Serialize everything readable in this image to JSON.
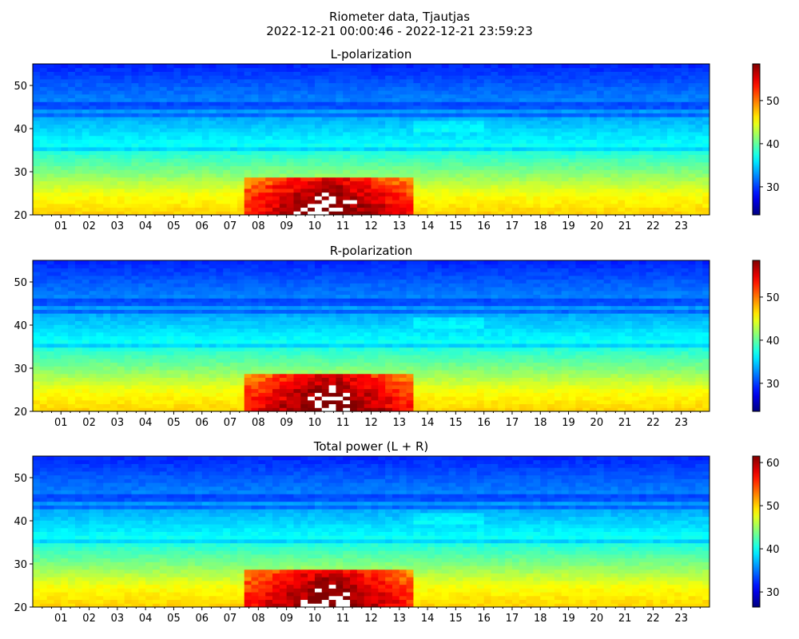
{
  "figure": {
    "title_line1": "Riometer data, Tjautjas",
    "title_line2": "2022-12-21 00:00:46 - 2022-12-21 23:59:23"
  },
  "colormap": "jet",
  "chart_data": [
    {
      "type": "heatmap",
      "title": "L-polarization",
      "xlabel": "",
      "ylabel": "",
      "x_range_hours": [
        0,
        24
      ],
      "x_ticks": [
        "01",
        "02",
        "03",
        "04",
        "05",
        "06",
        "07",
        "08",
        "09",
        "10",
        "11",
        "12",
        "13",
        "14",
        "15",
        "16",
        "17",
        "18",
        "19",
        "20",
        "21",
        "22",
        "23"
      ],
      "ylim": [
        20,
        55
      ],
      "y_ticks": [
        20,
        30,
        40,
        50
      ],
      "colorbar": {
        "range": [
          23.5,
          58.5
        ],
        "ticks": [
          30,
          40,
          50
        ]
      },
      "structure": {
        "background_profile": [
          [
            20,
            47
          ],
          [
            25,
            45
          ],
          [
            30,
            41
          ],
          [
            35,
            37.5
          ],
          [
            42,
            34
          ],
          [
            50,
            31
          ],
          [
            55,
            29
          ]
        ],
        "dark_bands_mhz": [
          35.2,
          43.2,
          45.3
        ],
        "saturated_region": {
          "start_hour": 7.5,
          "end_hour": 13.5,
          "y_from": 20,
          "y_to": 29
        },
        "clipped_note": "white = values above colour range"
      }
    },
    {
      "type": "heatmap",
      "title": "R-polarization",
      "xlabel": "",
      "ylabel": "",
      "x_range_hours": [
        0,
        24
      ],
      "x_ticks": [
        "01",
        "02",
        "03",
        "04",
        "05",
        "06",
        "07",
        "08",
        "09",
        "10",
        "11",
        "12",
        "13",
        "14",
        "15",
        "16",
        "17",
        "18",
        "19",
        "20",
        "21",
        "22",
        "23"
      ],
      "ylim": [
        20,
        55
      ],
      "y_ticks": [
        20,
        30,
        40,
        50
      ],
      "colorbar": {
        "range": [
          23.5,
          58.5
        ],
        "ticks": [
          30,
          40,
          50
        ]
      },
      "structure": {
        "background_profile": [
          [
            20,
            47
          ],
          [
            25,
            45
          ],
          [
            30,
            41
          ],
          [
            35,
            37.5
          ],
          [
            42,
            34
          ],
          [
            50,
            31
          ],
          [
            55,
            29
          ]
        ],
        "dark_bands_mhz": [
          35.2,
          43.2,
          45.3
        ],
        "saturated_region": {
          "start_hour": 7.5,
          "end_hour": 13.5,
          "y_from": 20,
          "y_to": 29
        }
      }
    },
    {
      "type": "heatmap",
      "title": "Total power (L + R)",
      "xlabel": "",
      "ylabel": "",
      "x_range_hours": [
        0,
        24
      ],
      "x_ticks": [
        "01",
        "02",
        "03",
        "04",
        "05",
        "06",
        "07",
        "08",
        "09",
        "10",
        "11",
        "12",
        "13",
        "14",
        "15",
        "16",
        "17",
        "18",
        "19",
        "20",
        "21",
        "22",
        "23"
      ],
      "ylim": [
        20,
        55
      ],
      "y_ticks": [
        20,
        30,
        40,
        50
      ],
      "colorbar": {
        "range": [
          26.5,
          61.5
        ],
        "ticks": [
          30,
          40,
          50,
          60
        ]
      },
      "structure": {
        "background_profile": [
          [
            20,
            50
          ],
          [
            25,
            48
          ],
          [
            30,
            44
          ],
          [
            35,
            40.5
          ],
          [
            42,
            37
          ],
          [
            50,
            34
          ],
          [
            55,
            32
          ]
        ],
        "dark_bands_mhz": [
          35.2,
          43.2,
          45.3
        ],
        "saturated_region": {
          "start_hour": 7.5,
          "end_hour": 13.5,
          "y_from": 20,
          "y_to": 29
        }
      }
    }
  ]
}
